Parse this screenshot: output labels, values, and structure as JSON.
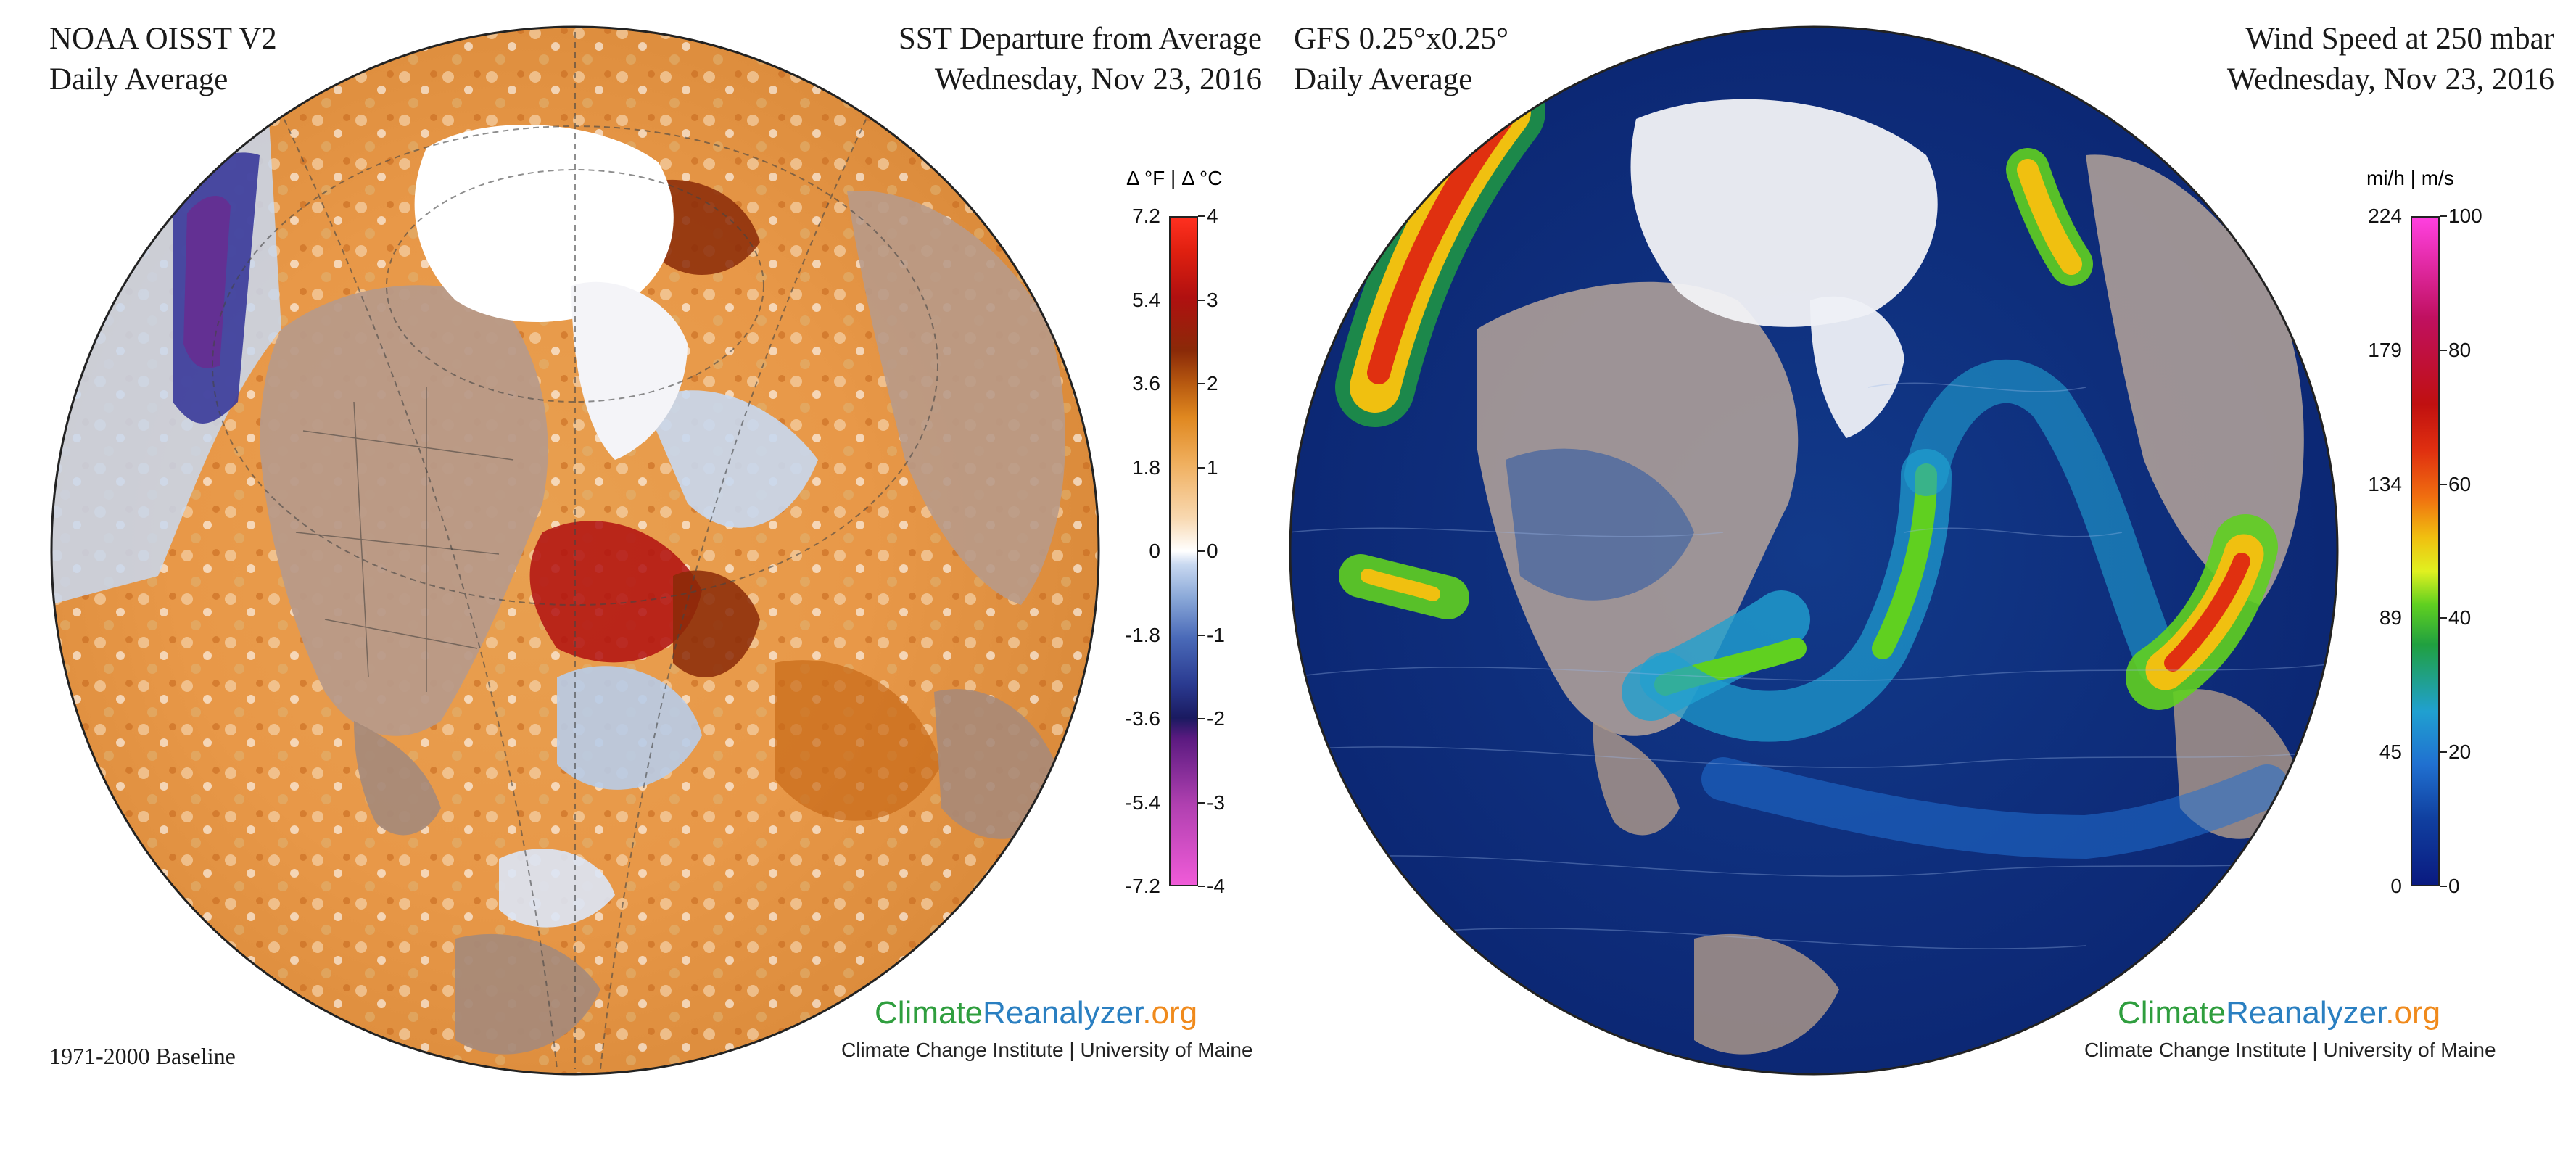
{
  "left": {
    "title_left": [
      "NOAA OISST V2",
      "Daily Average"
    ],
    "title_right": [
      "SST Departure from Average",
      "Wednesday, Nov 23, 2016"
    ],
    "legend_units": "Δ °F  |  Δ °C",
    "legend_f_ticks": [
      "7.2",
      "5.4",
      "3.6",
      "1.8",
      "0",
      "-1.8",
      "-3.6",
      "-5.4",
      "-7.2"
    ],
    "legend_c_ticks": [
      "4",
      "3",
      "2",
      "1",
      "0",
      "-1",
      "-2",
      "-3",
      "-4"
    ],
    "baseline": "1971-2000 Baseline",
    "brand": {
      "part1": "Climate",
      "part2": "Reanalyzer",
      "part3": ".org"
    },
    "institution": "Climate Change Institute | University of Maine",
    "colors": {
      "scale": [
        "#f05bd8",
        "#b040b0",
        "#5a1a80",
        "#1a1a60",
        "#2a3a90",
        "#4a6ab8",
        "#8aa8d8",
        "#c8d8f0",
        "#ffffff",
        "#f8d8b0",
        "#f0b060",
        "#e08820",
        "#b85a10",
        "#8a2a08",
        "#b01010",
        "#e02010",
        "#ff3020"
      ]
    }
  },
  "right": {
    "title_left": [
      "GFS 0.25°x0.25°",
      "Daily Average"
    ],
    "title_right": [
      "Wind Speed at 250 mbar",
      "Wednesday, Nov 23, 2016"
    ],
    "legend_units": "mi/h  |  m/s",
    "legend_mph_ticks": [
      "224",
      "179",
      "134",
      "89",
      "45",
      "0"
    ],
    "legend_ms_ticks": [
      "100",
      "80",
      "60",
      "40",
      "20",
      "0"
    ],
    "brand": {
      "part1": "Climate",
      "part2": "Reanalyzer",
      "part3": ".org"
    },
    "institution": "Climate Change Institute | University of Maine",
    "colors": {
      "scale": [
        "#ff40e0",
        "#c01060",
        "#c01010",
        "#e03010",
        "#f07010",
        "#f0c010",
        "#e0f020",
        "#60d020",
        "#20a040",
        "#20a0d0",
        "#2070d0",
        "#1040a0",
        "#0a1a80"
      ]
    }
  }
}
